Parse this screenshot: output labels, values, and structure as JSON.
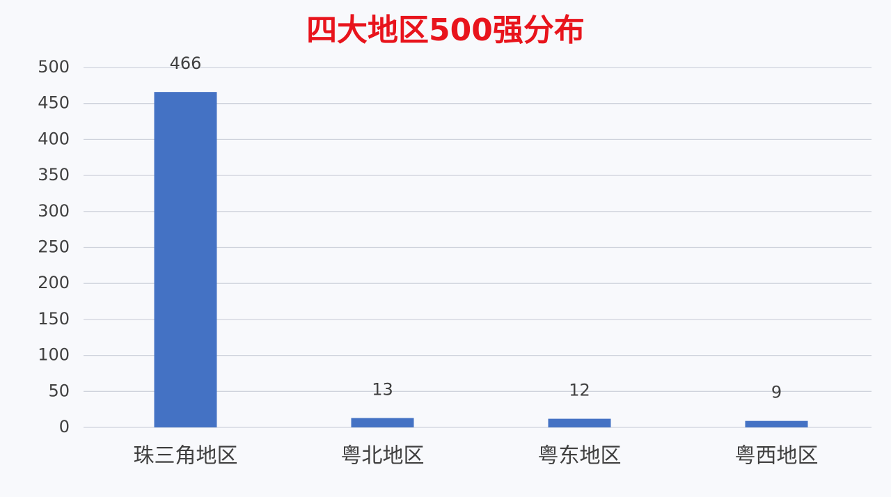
{
  "chart_data": {
    "type": "bar",
    "title": "四大地区500强分布",
    "categories": [
      "珠三角地区",
      "粤北地区",
      "粤东地区",
      "粤西地区"
    ],
    "values": [
      466,
      13,
      12,
      9
    ],
    "color": "#4472c4",
    "ylim": [
      0,
      500
    ],
    "yticks": [
      0,
      50,
      100,
      150,
      200,
      250,
      300,
      350,
      400,
      450,
      500
    ],
    "grid": true,
    "data_labels": true
  }
}
